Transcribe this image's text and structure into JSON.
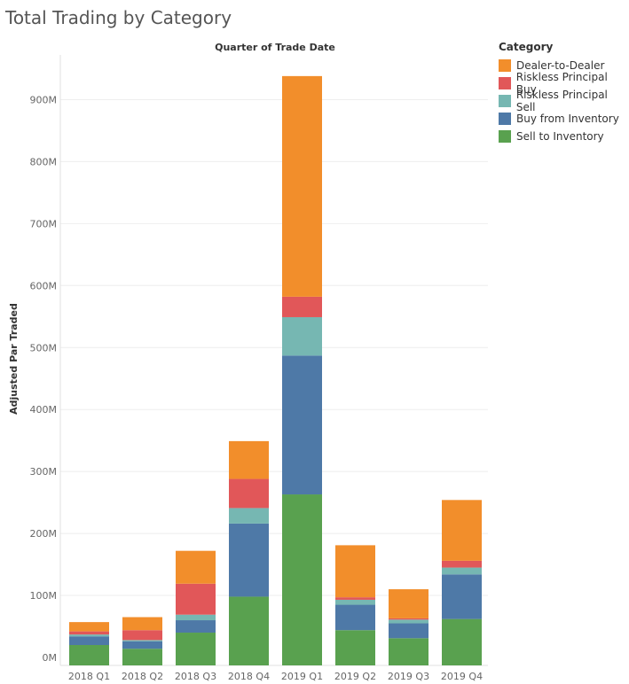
{
  "chart_data": {
    "type": "bar",
    "stacked": true,
    "title": "Total Trading by Category",
    "column_header": "Quarter of Trade Date",
    "ylabel": "Adjusted Par Traded",
    "ylim": [
      0,
      1000
    ],
    "yticks": [
      "0M",
      "100M",
      "200M",
      "300M",
      "400M",
      "500M",
      "600M",
      "700M",
      "800M",
      "900M"
    ],
    "categories": [
      "2018 Q1",
      "2018 Q2",
      "2018 Q3",
      "2018 Q4",
      "2019 Q1",
      "2019 Q2",
      "2019 Q3",
      "2019 Q4"
    ],
    "legend_title": "Category",
    "legend_position": "right",
    "grid": true,
    "series": [
      {
        "name": "Sell to Inventory",
        "color": "#59A14F",
        "values": [
          20,
          14,
          40,
          98,
          263,
          44,
          31,
          62
        ]
      },
      {
        "name": "Buy from Inventory",
        "color": "#4E79A7",
        "values": [
          14,
          12,
          20,
          118,
          224,
          41,
          24,
          72
        ]
      },
      {
        "name": "Riskless Principal Sell",
        "color": "#76B7B2",
        "values": [
          3,
          2,
          9,
          25,
          62,
          8,
          6,
          11
        ]
      },
      {
        "name": "Riskless Principal Buy",
        "color": "#E15759",
        "values": [
          5,
          16,
          50,
          47,
          33,
          4,
          2,
          11
        ]
      },
      {
        "name": "Dealer-to-Dealer",
        "color": "#F28E2B",
        "values": [
          15,
          21,
          53,
          61,
          356,
          84,
          47,
          98
        ]
      }
    ],
    "legend_order": [
      "Dealer-to-Dealer",
      "Riskless Principal Buy",
      "Riskless Principal Sell",
      "Buy from Inventory",
      "Sell to Inventory"
    ]
  }
}
